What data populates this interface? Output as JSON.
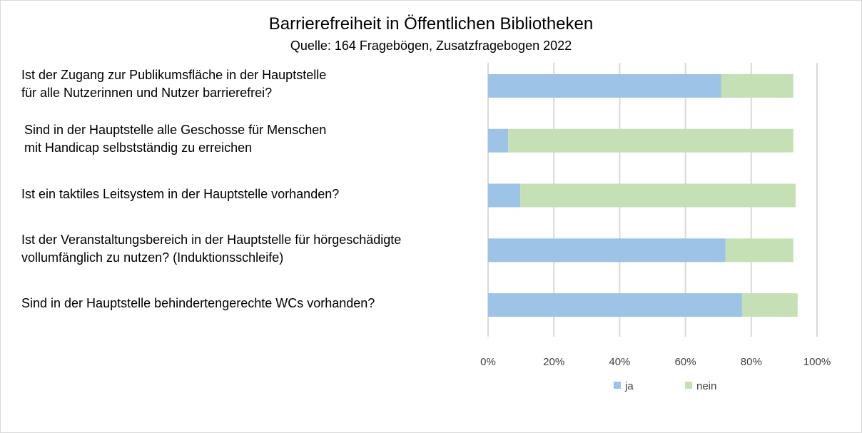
{
  "chart_data": {
    "type": "bar",
    "orientation": "horizontal",
    "stacked": true,
    "title": "Barrierefreiheit in Öffentlichen Bibliotheken",
    "subtitle": "Quelle: 164 Fragebögen, Zusatzfragebogen 2022",
    "categories": [
      [
        "Ist der Zugang zur Publikumsfläche in der Hauptstelle",
        "für alle Nutzerinnen und Nutzer barrierefrei?"
      ],
      [
        "Sind in der Hauptstelle alle Geschosse für Menschen",
        "mit Handicap selbstständig zu erreichen"
      ],
      [
        "Ist ein taktiles Leitsystem in der Hauptstelle vorhanden?"
      ],
      [
        "Ist der Veranstaltungsbereich in der Hauptstelle für hörgeschädigte",
        "vollumfänglich zu nutzen? (Induktionsschleife)"
      ],
      [
        "Sind in der Hauptstelle behindertengerechte WCs vorhanden?"
      ]
    ],
    "series": [
      {
        "name": "ja",
        "color": "#9dc3e6",
        "values": [
          70.9,
          6.1,
          9.8,
          72.2,
          77.2
        ]
      },
      {
        "name": "nein",
        "color": "#c5e0b4",
        "values": [
          21.9,
          86.7,
          83.7,
          20.6,
          16.9
        ]
      }
    ],
    "xlim": [
      0,
      100
    ],
    "xticks": [
      "0%",
      "20%",
      "40%",
      "60%",
      "80%",
      "100%"
    ],
    "grid": true,
    "legend": "bottom",
    "xlabel": "",
    "ylabel": ""
  }
}
